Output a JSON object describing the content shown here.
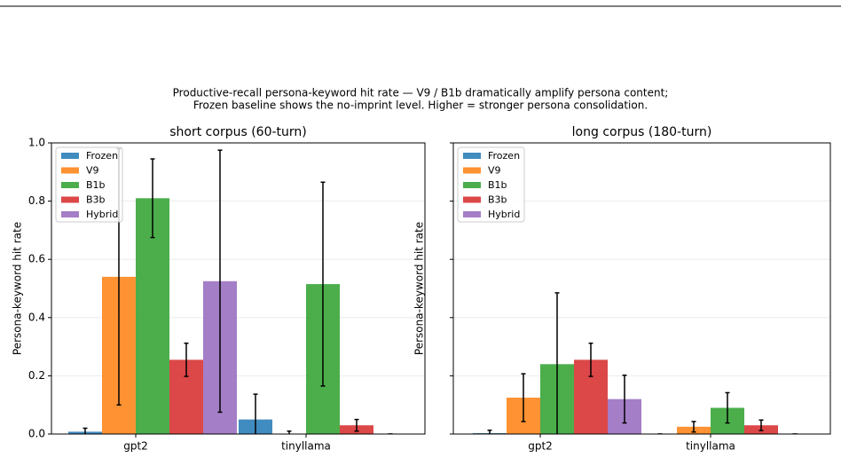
{
  "title": [
    "Productive-recall persona-keyword hit rate — V9 / B1b dramatically amplify persona content;",
    "Frozen baseline shows the no-imprint level. Higher = stronger persona consolidation."
  ],
  "chart_data": [
    {
      "type": "bar",
      "title": "short corpus (60-turn)",
      "ylabel": "Persona-keyword hit rate",
      "categories": [
        "gpt2",
        "tinyllama"
      ],
      "series": [
        {
          "name": "Frozen",
          "color": "#1f77b4",
          "values": [
            0.008,
            0.05
          ],
          "errors": [
            0.012,
            0.087
          ]
        },
        {
          "name": "V9",
          "color": "#ff7f0e",
          "values": [
            0.54,
            0.0
          ],
          "errors": [
            0.44,
            0.01
          ]
        },
        {
          "name": "B1b",
          "color": "#2ca02c",
          "values": [
            0.81,
            0.515
          ],
          "errors": [
            0.135,
            0.35
          ]
        },
        {
          "name": "B3b",
          "color": "#d62728",
          "values": [
            0.255,
            0.03
          ],
          "errors": [
            0.057,
            0.02
          ]
        },
        {
          "name": "Hybrid",
          "color": "#9467bd",
          "values": [
            0.525,
            0.0
          ],
          "errors": [
            0.45,
            0.0
          ]
        }
      ],
      "ylim": [
        0,
        1
      ],
      "yticks": [
        {
          "value": 0,
          "label": "0.0"
        },
        0.2,
        0.4,
        0.6,
        0.8,
        {
          "value": 1,
          "label": "1.0"
        }
      ],
      "grid": true,
      "legend": "upper left"
    },
    {
      "type": "bar",
      "title": "long corpus (180-turn)",
      "ylabel": "Persona-keyword hit rate",
      "categories": [
        "gpt2",
        "tinyllama"
      ],
      "series": [
        {
          "name": "Frozen",
          "color": "#1f77b4",
          "values": [
            0.003,
            0.0
          ],
          "errors": [
            0.01,
            0.0
          ]
        },
        {
          "name": "V9",
          "color": "#ff7f0e",
          "values": [
            0.125,
            0.025
          ],
          "errors": [
            0.082,
            0.018
          ]
        },
        {
          "name": "B1b",
          "color": "#2ca02c",
          "values": [
            0.24,
            0.09
          ],
          "errors": [
            0.245,
            0.052
          ]
        },
        {
          "name": "B3b",
          "color": "#d62728",
          "values": [
            0.255,
            0.03
          ],
          "errors": [
            0.057,
            0.018
          ]
        },
        {
          "name": "Hybrid",
          "color": "#9467bd",
          "values": [
            0.12,
            0.0
          ],
          "errors": [
            0.082,
            0.0
          ]
        }
      ],
      "ylim": [
        0,
        1
      ],
      "yticks": [
        0,
        0.2,
        0.4,
        0.6,
        0.8,
        1
      ],
      "ytick_labels": false,
      "grid": true,
      "legend": "upper left"
    }
  ]
}
